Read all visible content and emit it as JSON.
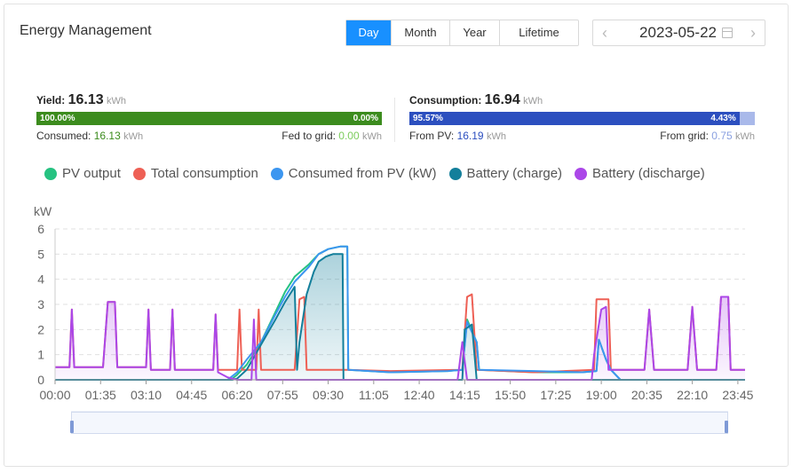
{
  "header": {
    "title": "Energy Management"
  },
  "range_tabs": [
    {
      "label": "Day",
      "active": true
    },
    {
      "label": "Month",
      "active": false
    },
    {
      "label": "Year",
      "active": false
    },
    {
      "label": "Lifetime",
      "active": false
    }
  ],
  "date_picker": {
    "value": "2023-05-22"
  },
  "yield": {
    "label": "Yield:",
    "value": "16.13",
    "unit": "kWh",
    "consumed_pct": "100.00%",
    "fed_pct": "0.00%",
    "consumed_label": "Consumed:",
    "consumed_value": "16.13",
    "consumed_unit": "kWh",
    "fed_label": "Fed to grid:",
    "fed_value": "0.00",
    "fed_unit": "kWh",
    "colors": {
      "main": "#3c8c1e",
      "fed_text": "#7ccc5c"
    }
  },
  "consumption": {
    "label": "Consumption:",
    "value": "16.94",
    "unit": "kWh",
    "pv_pct": "95.57%",
    "grid_pct": "4.43%",
    "pv_label": "From PV:",
    "pv_value": "16.19",
    "pv_unit": "kWh",
    "grid_label": "From grid:",
    "grid_value": "0.75",
    "grid_unit": "kWh",
    "colors": {
      "main": "#2c4fbf",
      "grid": "#a9b9ea",
      "pv_text": "#2c4fbf",
      "grid_text": "#8aa0e0"
    }
  },
  "chart_data": {
    "type": "line",
    "ylabel": "kW",
    "ylim": [
      0,
      6
    ],
    "yticks": [
      "0",
      "1",
      "2",
      "3",
      "4",
      "5",
      "6"
    ],
    "xlim": [
      0,
      1440
    ],
    "xticks": [
      {
        "t": 0,
        "label": "00:00"
      },
      {
        "t": 95,
        "label": "01:35"
      },
      {
        "t": 190,
        "label": "03:10"
      },
      {
        "t": 285,
        "label": "04:45"
      },
      {
        "t": 380,
        "label": "06:20"
      },
      {
        "t": 475,
        "label": "07:55"
      },
      {
        "t": 570,
        "label": "09:30"
      },
      {
        "t": 665,
        "label": "11:05"
      },
      {
        "t": 760,
        "label": "12:40"
      },
      {
        "t": 855,
        "label": "14:15"
      },
      {
        "t": 950,
        "label": "15:50"
      },
      {
        "t": 1045,
        "label": "17:25"
      },
      {
        "t": 1140,
        "label": "19:00"
      },
      {
        "t": 1235,
        "label": "20:35"
      },
      {
        "t": 1330,
        "label": "22:10"
      },
      {
        "t": 1425,
        "label": "23:45"
      }
    ],
    "grid": true,
    "legend_position": "top",
    "series": [
      {
        "name": "PV output",
        "color": "#26c281",
        "points": [
          [
            0,
            0
          ],
          [
            360,
            0
          ],
          [
            370,
            0.05
          ],
          [
            380,
            0.2
          ],
          [
            400,
            0.6
          ],
          [
            430,
            1.5
          ],
          [
            460,
            2.7
          ],
          [
            480,
            3.5
          ],
          [
            500,
            4.1
          ],
          [
            530,
            4.6
          ],
          [
            550,
            5.0
          ],
          [
            570,
            5.2
          ],
          [
            595,
            5.3
          ],
          [
            610,
            5.3
          ],
          [
            612,
            0.4
          ],
          [
            700,
            0.3
          ],
          [
            820,
            0.35
          ],
          [
            850,
            0.4
          ],
          [
            860,
            2.4
          ],
          [
            880,
            1.5
          ],
          [
            885,
            0.4
          ],
          [
            1000,
            0.3
          ],
          [
            1100,
            0.3
          ],
          [
            1130,
            0.35
          ],
          [
            1135,
            1.6
          ],
          [
            1150,
            0.8
          ],
          [
            1160,
            0.4
          ],
          [
            1180,
            0
          ],
          [
            1440,
            0
          ]
        ]
      },
      {
        "name": "Total consumption",
        "color": "#ee6055",
        "points": [
          [
            0,
            0.5
          ],
          [
            30,
            0.5
          ],
          [
            35,
            2.8
          ],
          [
            40,
            0.5
          ],
          [
            100,
            0.5
          ],
          [
            110,
            3.1
          ],
          [
            125,
            3.1
          ],
          [
            130,
            0.5
          ],
          [
            190,
            0.5
          ],
          [
            195,
            2.8
          ],
          [
            200,
            0.4
          ],
          [
            240,
            0.4
          ],
          [
            245,
            2.8
          ],
          [
            250,
            0.4
          ],
          [
            330,
            0.4
          ],
          [
            335,
            2.6
          ],
          [
            340,
            0.4
          ],
          [
            380,
            0.4
          ],
          [
            385,
            2.8
          ],
          [
            390,
            0.4
          ],
          [
            420,
            0.4
          ],
          [
            425,
            2.8
          ],
          [
            430,
            0.4
          ],
          [
            500,
            0.4
          ],
          [
            510,
            3.2
          ],
          [
            520,
            3.3
          ],
          [
            525,
            0.4
          ],
          [
            610,
            0.4
          ],
          [
            700,
            0.35
          ],
          [
            850,
            0.4
          ],
          [
            860,
            3.3
          ],
          [
            870,
            3.4
          ],
          [
            880,
            0.4
          ],
          [
            1000,
            0.3
          ],
          [
            1125,
            0.4
          ],
          [
            1130,
            3.2
          ],
          [
            1155,
            3.2
          ],
          [
            1160,
            0.4
          ],
          [
            1230,
            0.4
          ],
          [
            1240,
            2.8
          ],
          [
            1250,
            0.4
          ],
          [
            1320,
            0.4
          ],
          [
            1330,
            2.9
          ],
          [
            1340,
            0.4
          ],
          [
            1380,
            0.4
          ],
          [
            1390,
            3.3
          ],
          [
            1405,
            3.3
          ],
          [
            1410,
            0.4
          ],
          [
            1440,
            0.4
          ]
        ]
      },
      {
        "name": "Consumed from PV (kW)",
        "color": "#3c96f0",
        "points": [
          [
            0,
            0
          ],
          [
            360,
            0
          ],
          [
            380,
            0.3
          ],
          [
            400,
            0.8
          ],
          [
            430,
            1.5
          ],
          [
            460,
            2.6
          ],
          [
            480,
            3.3
          ],
          [
            500,
            3.9
          ],
          [
            530,
            4.5
          ],
          [
            550,
            5.0
          ],
          [
            570,
            5.2
          ],
          [
            595,
            5.3
          ],
          [
            610,
            5.3
          ],
          [
            612,
            0.4
          ],
          [
            700,
            0.3
          ],
          [
            820,
            0.35
          ],
          [
            850,
            0.4
          ],
          [
            860,
            2.3
          ],
          [
            880,
            1.5
          ],
          [
            885,
            0.4
          ],
          [
            1000,
            0.35
          ],
          [
            1100,
            0.3
          ],
          [
            1130,
            0.35
          ],
          [
            1135,
            1.6
          ],
          [
            1150,
            0.8
          ],
          [
            1160,
            0.4
          ],
          [
            1180,
            0
          ],
          [
            1440,
            0
          ]
        ]
      },
      {
        "name": "Battery (charge)",
        "color": "#137f9b",
        "area": true,
        "points": [
          [
            0,
            0
          ],
          [
            370,
            0
          ],
          [
            380,
            0.05
          ],
          [
            400,
            0.4
          ],
          [
            430,
            1.4
          ],
          [
            460,
            2.4
          ],
          [
            480,
            3.1
          ],
          [
            500,
            3.7
          ],
          [
            505,
            0.4
          ],
          [
            510,
            1.5
          ],
          [
            525,
            3.4
          ],
          [
            540,
            4.3
          ],
          [
            550,
            4.7
          ],
          [
            565,
            4.9
          ],
          [
            580,
            5.0
          ],
          [
            600,
            5.0
          ],
          [
            602,
            0
          ],
          [
            850,
            0
          ],
          [
            855,
            2.0
          ],
          [
            870,
            2.2
          ],
          [
            880,
            0
          ],
          [
            1440,
            0
          ]
        ]
      },
      {
        "name": "Battery (discharge)",
        "color": "#ab47e8",
        "area": true,
        "points": [
          [
            0,
            0.5
          ],
          [
            30,
            0.5
          ],
          [
            35,
            2.8
          ],
          [
            40,
            0.5
          ],
          [
            100,
            0.5
          ],
          [
            110,
            3.1
          ],
          [
            125,
            3.1
          ],
          [
            130,
            0.5
          ],
          [
            190,
            0.5
          ],
          [
            195,
            2.8
          ],
          [
            200,
            0.4
          ],
          [
            240,
            0.4
          ],
          [
            245,
            2.8
          ],
          [
            250,
            0.4
          ],
          [
            330,
            0.4
          ],
          [
            335,
            2.6
          ],
          [
            340,
            0.3
          ],
          [
            360,
            0.1
          ],
          [
            380,
            0
          ],
          [
            410,
            0
          ],
          [
            415,
            2.4
          ],
          [
            420,
            0
          ],
          [
            840,
            0
          ],
          [
            850,
            1.5
          ],
          [
            860,
            0
          ],
          [
            1120,
            0
          ],
          [
            1125,
            1.0
          ],
          [
            1140,
            2.8
          ],
          [
            1150,
            2.9
          ],
          [
            1155,
            0.4
          ],
          [
            1230,
            0.4
          ],
          [
            1240,
            2.8
          ],
          [
            1250,
            0.4
          ],
          [
            1320,
            0.4
          ],
          [
            1330,
            2.9
          ],
          [
            1340,
            0.4
          ],
          [
            1380,
            0.4
          ],
          [
            1390,
            3.3
          ],
          [
            1405,
            3.3
          ],
          [
            1410,
            0.4
          ],
          [
            1440,
            0.4
          ]
        ]
      }
    ]
  }
}
